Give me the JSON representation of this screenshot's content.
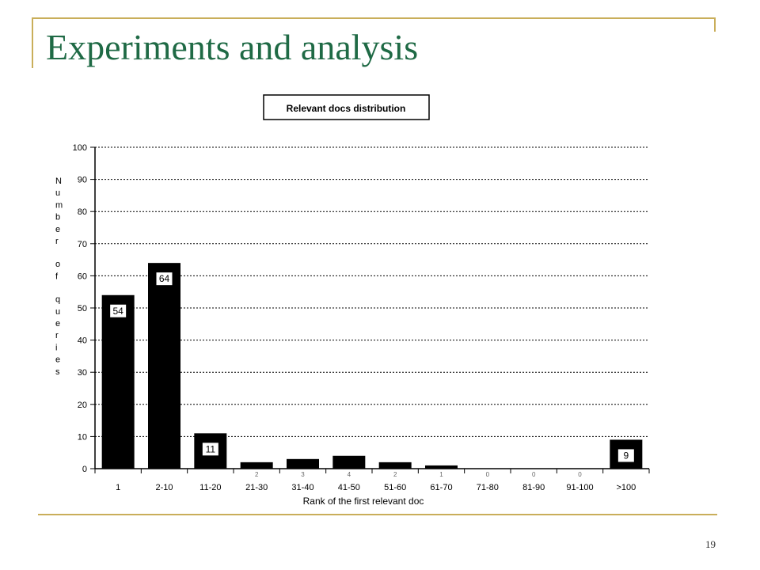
{
  "slide": {
    "title": "Experiments and analysis",
    "page_number": "19"
  },
  "colors": {
    "title": "#1f6a45",
    "frame": "#c9ae5a",
    "bar": "#000000"
  },
  "chart_data": {
    "type": "bar",
    "title": "Relevant docs distribution",
    "xlabel": "Rank of the first relevant doc",
    "ylabel": "Number of queries",
    "ylim": [
      0,
      100
    ],
    "yticks": [
      0,
      10,
      20,
      30,
      40,
      50,
      60,
      70,
      80,
      90,
      100
    ],
    "grid": true,
    "categories": [
      "1",
      "2-10",
      "11-20",
      "21-30",
      "31-40",
      "41-50",
      "51-60",
      "61-70",
      "71-80",
      "81-90",
      "91-100",
      ">100"
    ],
    "values": [
      54,
      64,
      11,
      2,
      3,
      4,
      2,
      1,
      0,
      0,
      0,
      9
    ],
    "data_labels": [
      "54",
      "64",
      "11",
      "2",
      "3",
      "4",
      "2",
      "1",
      "0",
      "0",
      "0",
      "9"
    ]
  }
}
